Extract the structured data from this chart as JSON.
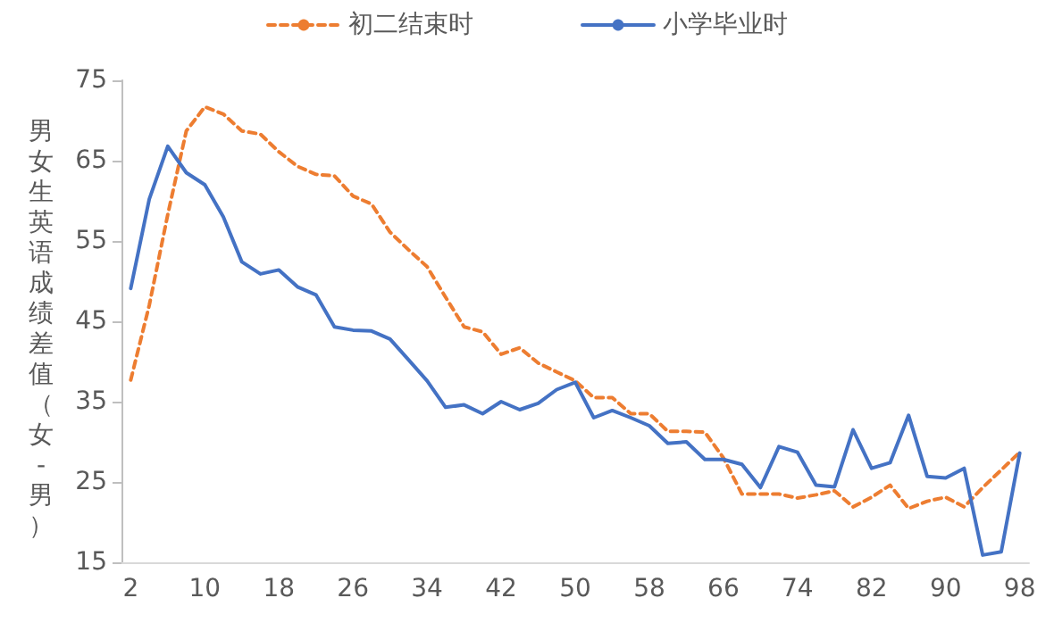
{
  "chart_data": {
    "type": "line",
    "ylabel": "男女生英语成绩差值（女-男）",
    "categories": [
      "2",
      null,
      null,
      null,
      "10",
      null,
      null,
      null,
      "18",
      null,
      null,
      null,
      "26",
      null,
      null,
      null,
      "34",
      null,
      null,
      null,
      "42",
      null,
      null,
      null,
      "50",
      null,
      null,
      null,
      "58",
      null,
      null,
      null,
      "66",
      null,
      null,
      null,
      "74",
      null,
      null,
      null,
      "82",
      null,
      null,
      null,
      "90",
      null,
      null,
      null,
      "98"
    ],
    "series": [
      {
        "name": "初二结束时",
        "color": "#ed7d31",
        "line_style": "dashed",
        "values": [
          37.7,
          47,
          58.3,
          68.7,
          71.7,
          70.8,
          68.7,
          68.3,
          66.1,
          64.3,
          63.3,
          63.1,
          60.6,
          59.6,
          56.1,
          53.9,
          51.8,
          48,
          44.3,
          43.7,
          40.9,
          41.7,
          39.8,
          38.7,
          37.6,
          35.5,
          35.5,
          33.5,
          33.5,
          31.3,
          31.3,
          31.2,
          28,
          23.5,
          23.5,
          23.5,
          23,
          23.4,
          23.9,
          21.9,
          23.1,
          24.6,
          21.7,
          22.6,
          23.1,
          21.9,
          24.3,
          26.5,
          28.7
        ]
      },
      {
        "name": "小学毕业时",
        "color": "#4472c4",
        "line_style": "solid",
        "values": [
          49.1,
          60.2,
          66.8,
          63.5,
          62,
          58,
          52.4,
          50.9,
          51.4,
          49.3,
          48.3,
          44.3,
          43.9,
          43.8,
          42.8,
          40.2,
          37.6,
          34.3,
          34.6,
          33.5,
          35,
          34,
          34.8,
          36.5,
          37.4,
          33,
          33.9,
          33,
          32,
          29.8,
          30,
          27.8,
          27.8,
          27.2,
          24.3,
          29.4,
          28.7,
          24.6,
          24.4,
          31.5,
          26.7,
          27.4,
          33.3,
          25.7,
          25.5,
          26.7,
          15.9,
          16.3,
          28.6
        ]
      }
    ],
    "ylim": [
      15,
      75
    ],
    "yticks": [
      15,
      25,
      35,
      45,
      55,
      65,
      75
    ],
    "grid": false,
    "legend": "top",
    "marker": "none"
  }
}
